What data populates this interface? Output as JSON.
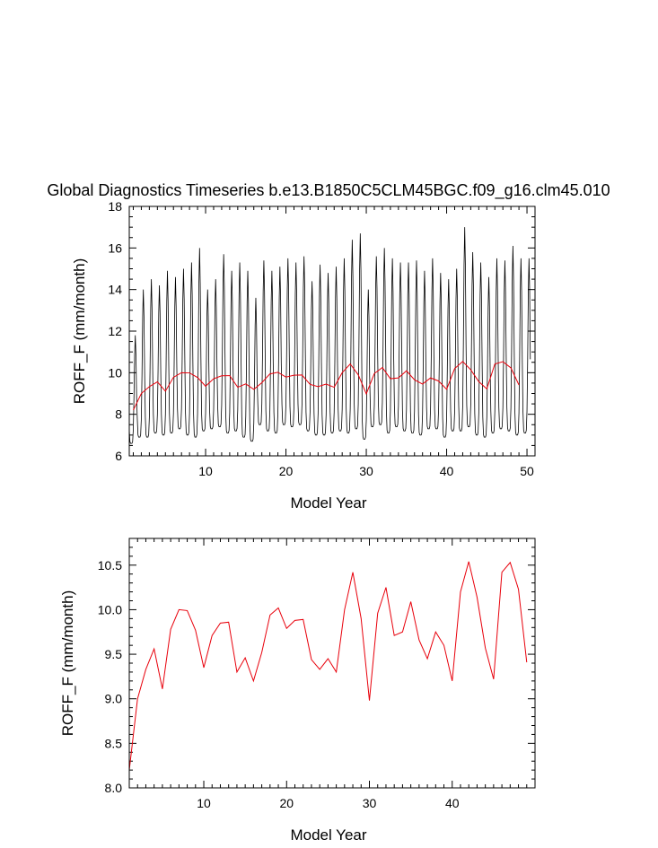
{
  "chart_data": [
    {
      "type": "line",
      "title": "Global Diagnostics Timeseries b.e13.B1850C5CLM45BGC.f09_g16.clm45.010",
      "xlabel": "Model Year",
      "ylabel": "ROFF_F (mm/month)",
      "xlim": [
        0.5,
        51
      ],
      "ylim": [
        6,
        18
      ],
      "x_ticks": [
        "10",
        "20",
        "30",
        "40",
        "50"
      ],
      "y_ticks": [
        "6",
        "8",
        "10",
        "12",
        "14",
        "16",
        "18"
      ],
      "grid": false,
      "legend": "none",
      "series": [
        {
          "color": "#000000",
          "style": "monthly",
          "peaks": [
            11.8,
            14.0,
            14.5,
            14.2,
            14.9,
            14.6,
            15.0,
            15.3,
            16.0,
            14.0,
            14.5,
            15.7,
            14.9,
            15.3,
            14.9,
            13.6,
            15.4,
            14.9,
            15.1,
            15.5,
            15.3,
            15.6,
            14.4,
            15.2,
            14.8,
            15.1,
            15.5,
            16.4,
            16.7,
            14.0,
            15.6,
            16.0,
            15.5,
            15.3,
            15.3,
            15.4,
            14.9,
            15.5,
            14.8,
            14.5,
            15.0,
            17.0,
            15.8,
            15.3,
            14.6,
            15.5,
            15.4,
            16.1,
            15.5,
            15.5
          ],
          "troughs": [
            6.6,
            6.9,
            6.9,
            7.1,
            7.0,
            7.1,
            7.3,
            7.0,
            6.9,
            7.2,
            7.3,
            7.4,
            7.1,
            7.2,
            6.9,
            6.7,
            7.5,
            7.2,
            7.1,
            7.5,
            7.4,
            7.5,
            7.2,
            7.0,
            7.0,
            7.1,
            7.2,
            7.1,
            7.3,
            6.8,
            7.4,
            7.5,
            7.1,
            7.4,
            7.2,
            7.1,
            7.0,
            7.3,
            7.3,
            6.9,
            7.2,
            7.2,
            7.4,
            7.0,
            6.9,
            7.1,
            7.3,
            7.2,
            7.0,
            7.1
          ]
        },
        {
          "color": "#e8000b",
          "style": "annual",
          "values": [
            8.2,
            9.0,
            9.33,
            9.56,
            9.11,
            9.78,
            10.0,
            9.99,
            9.77,
            9.35,
            9.71,
            9.85,
            9.86,
            9.3,
            9.46,
            9.2,
            9.52,
            9.94,
            10.02,
            9.79,
            9.88,
            9.89,
            9.44,
            9.33,
            9.45,
            9.3,
            10.0,
            10.42,
            9.9,
            8.98,
            9.96,
            10.25,
            9.71,
            9.75,
            10.09,
            9.66,
            9.45,
            9.75,
            9.6,
            9.2,
            10.2,
            10.54,
            10.14,
            9.57,
            9.22,
            10.42,
            10.53,
            10.23,
            9.41
          ]
        }
      ]
    },
    {
      "type": "line",
      "title": "",
      "xlabel": "Model Year",
      "ylabel": "ROFF_F (mm/month)",
      "xlim": [
        1,
        50
      ],
      "ylim": [
        8.0,
        10.8
      ],
      "x_ticks": [
        "10",
        "20",
        "30",
        "40"
      ],
      "y_ticks": [
        "8.0",
        "8.5",
        "9.0",
        "9.5",
        "10.0",
        "10.5"
      ],
      "grid": false,
      "legend": "none",
      "series": [
        {
          "color": "#e8000b",
          "values": [
            8.2,
            9.0,
            9.33,
            9.56,
            9.11,
            9.78,
            10.0,
            9.99,
            9.77,
            9.35,
            9.71,
            9.85,
            9.86,
            9.3,
            9.46,
            9.2,
            9.52,
            9.94,
            10.02,
            9.79,
            9.88,
            9.89,
            9.44,
            9.33,
            9.45,
            9.3,
            10.0,
            10.42,
            9.9,
            8.98,
            9.96,
            10.25,
            9.71,
            9.75,
            10.09,
            9.66,
            9.45,
            9.75,
            9.6,
            9.2,
            10.2,
            10.54,
            10.14,
            9.57,
            9.22,
            10.42,
            10.53,
            10.23,
            9.41
          ]
        }
      ]
    }
  ]
}
